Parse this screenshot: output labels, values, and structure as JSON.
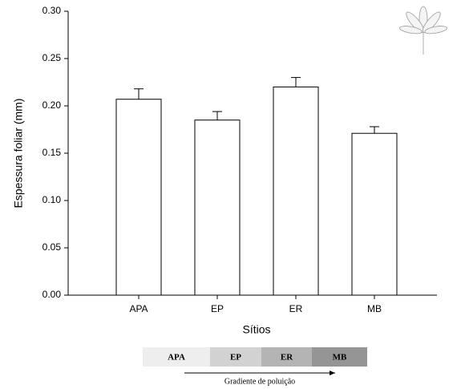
{
  "chart_data": {
    "type": "bar",
    "y_label": "Espessura foliar (mm)",
    "x_label": "Sítios",
    "categories": [
      "APA",
      "EP",
      "ER",
      "MB"
    ],
    "values": [
      0.207,
      0.185,
      0.22,
      0.171
    ],
    "errors": [
      0.011,
      0.009,
      0.01,
      0.007
    ],
    "color": "#ffffff",
    "ylim": [
      0,
      0.3
    ],
    "yticks": [
      {
        "value": 0,
        "label": "0.00"
      },
      0.05,
      {
        "value": 0.1,
        "label": "0.10"
      },
      0.15,
      {
        "value": 0.2,
        "label": "0.20"
      },
      0.25,
      {
        "value": 0.3,
        "label": "0.30"
      }
    ],
    "grid": false
  },
  "gradient": {
    "labels": [
      "APA",
      "EP",
      "ER",
      "MB"
    ],
    "colors": [
      "#eeeeee",
      "#d2d2d2",
      "#b4b4b4",
      "#959595"
    ],
    "caption": "Gradiente de poluição"
  }
}
